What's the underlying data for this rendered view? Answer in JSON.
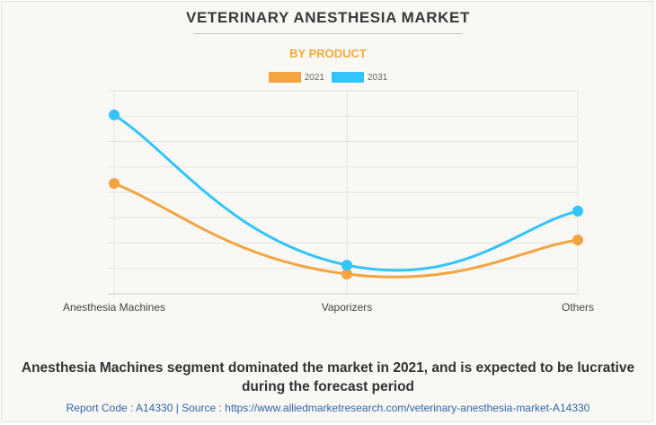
{
  "header": {
    "title": "VETERINARY ANESTHESIA MARKET",
    "subtitle": "BY PRODUCT"
  },
  "colors": {
    "series_2021": "#f2a541",
    "series_2031": "#33c4fb",
    "grid": "#e4e3df",
    "subtitle": "#f2a93b",
    "source_link": "#2f64a8"
  },
  "chart_data": {
    "type": "line",
    "title": "VETERINARY ANESTHESIA MARKET",
    "subtitle": "BY PRODUCT",
    "categories": [
      "Anesthesia Machines",
      "Vaporizers",
      "Others"
    ],
    "series": [
      {
        "name": "2021",
        "values": [
          4.35,
          0.78,
          2.12
        ]
      },
      {
        "name": "2031",
        "values": [
          7.05,
          1.13,
          3.26
        ]
      }
    ],
    "xlabel": "",
    "ylabel": "",
    "ylim": [
      0,
      8
    ],
    "y_units_note": "relative (no y-axis tick labels shown)",
    "grid": true,
    "smooth": true,
    "legend": "top-center"
  },
  "footer": {
    "caption": "Anesthesia Machines segment dominated the market in 2021, and is expected to be lucrative during the forecast period",
    "source": "Report Code : A14330  |  Source : https://www.alliedmarketresearch.com/veterinary-anesthesia-market-A14330"
  }
}
